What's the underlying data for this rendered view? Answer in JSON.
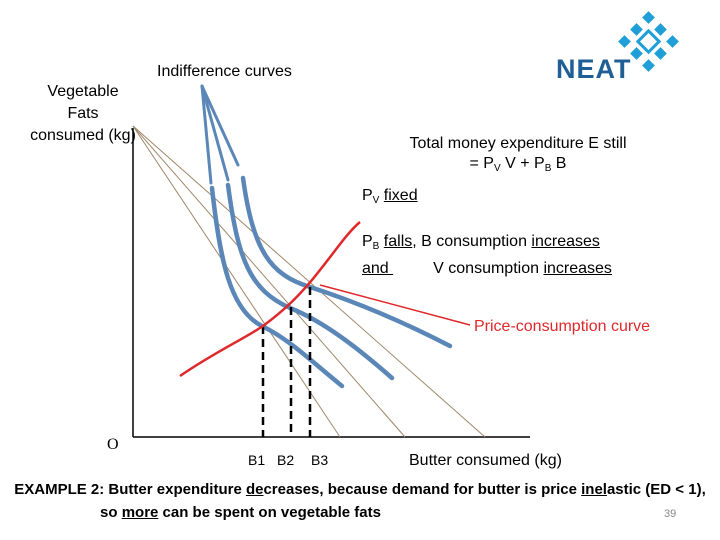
{
  "y_axis_label": "Vegetable Fats consumed (kg)",
  "indifference_label": "Indifference curves",
  "brand_name": "NEAT",
  "expenditure_line1": "Total money expenditure E still",
  "expenditure_eq": {
    "eq": "= P",
    "v_sub": "V",
    "v": " V  + P",
    "b_sub": "B",
    "b": " B"
  },
  "pv_fixed": {
    "p": "P",
    "sub": "V",
    "fixed": "fixed"
  },
  "pb_falls": {
    "p": "P",
    "sub": "B",
    "falls": "falls",
    "mid": ", B consumption ",
    "increases1": "increases",
    "and": "and ",
    "gap": "         V consumption ",
    "increases2": "increases"
  },
  "pcc_label": "Price-consumption curve",
  "origin_label": "O",
  "x_ticks": [
    "B1",
    "B2",
    "B3"
  ],
  "x_axis_label": "Butter consumed (kg)",
  "example_line1": {
    "a": "EXAMPLE 2: Butter expenditure ",
    "b": "de",
    "c": "creases, because demand for butter is price ",
    "d": "inel",
    "e": "astic (ED < 1),"
  },
  "example_line2": {
    "a": "so ",
    "b": "more",
    "c": " can be spent on vegetable fats"
  },
  "page_number": "39",
  "colors": {
    "curve": "#5b87b8",
    "pcc": "#e0282a",
    "brand": "#1f5f95",
    "budget": "#a0876a"
  }
}
